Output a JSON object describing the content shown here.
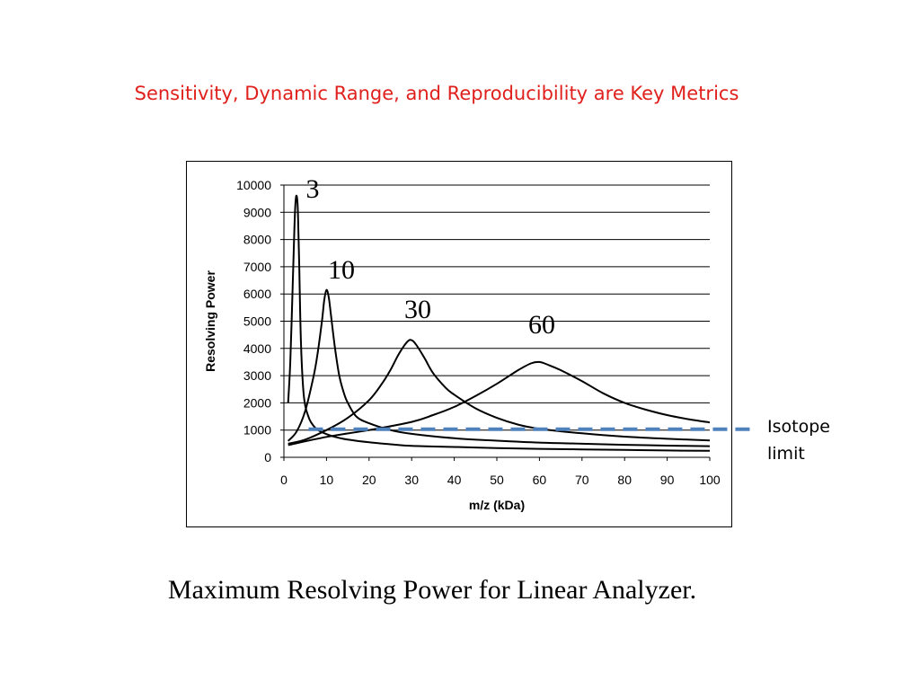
{
  "slide": {
    "title": "Sensitivity, Dynamic Range, and Reproducibility are Key Metrics",
    "caption": "Maximum Resolving Power for Linear Analyzer.",
    "isotope_label": "Isotope limit"
  },
  "chart_data": {
    "type": "line",
    "title": "",
    "xlabel": "m/z (kDa)",
    "ylabel": "Resolving Power",
    "xlim": [
      0,
      100
    ],
    "ylim": [
      0,
      10000
    ],
    "x_ticks": [
      0,
      10,
      20,
      30,
      40,
      50,
      60,
      70,
      80,
      90,
      100
    ],
    "y_ticks": [
      0,
      1000,
      2000,
      3000,
      4000,
      5000,
      6000,
      7000,
      8000,
      9000,
      10000
    ],
    "grid": "horizontal",
    "line_color": "#000000",
    "series": [
      {
        "label": "3",
        "x": [
          1,
          1.5,
          2,
          2.4,
          2.7,
          3,
          3.3,
          3.6,
          4,
          4.5,
          5,
          6,
          7,
          8,
          10,
          12,
          15,
          20,
          25,
          30,
          40,
          50,
          60,
          70,
          80,
          90,
          100
        ],
        "y": [
          2000,
          3500,
          6000,
          8100,
          9300,
          9600,
          9000,
          7000,
          4200,
          2600,
          1900,
          1400,
          1150,
          1000,
          850,
          750,
          650,
          550,
          480,
          420,
          380,
          340,
          310,
          290,
          270,
          250,
          240
        ]
      },
      {
        "label": "10",
        "x": [
          1,
          3,
          5,
          7,
          8,
          9,
          9.5,
          10,
          10.5,
          11,
          12,
          13,
          14,
          15,
          17,
          20,
          25,
          30,
          40,
          50,
          60,
          70,
          80,
          90,
          100
        ],
        "y": [
          600,
          950,
          1700,
          3000,
          3900,
          5100,
          5800,
          6150,
          5900,
          5300,
          4000,
          3000,
          2400,
          2000,
          1500,
          1250,
          1000,
          860,
          700,
          610,
          540,
          500,
          460,
          430,
          410
        ]
      },
      {
        "label": "30",
        "x": [
          1,
          5,
          10,
          15,
          20,
          23,
          25,
          27,
          29,
          30,
          31,
          33,
          35,
          38,
          40,
          45,
          50,
          55,
          60,
          70,
          80,
          90,
          100
        ],
        "y": [
          500,
          650,
          1000,
          1450,
          2100,
          2700,
          3200,
          3800,
          4250,
          4300,
          4150,
          3650,
          3100,
          2550,
          2300,
          1800,
          1450,
          1200,
          1050,
          880,
          760,
          680,
          620
        ]
      },
      {
        "label": "60",
        "x": [
          1,
          10,
          20,
          30,
          35,
          40,
          45,
          50,
          55,
          58,
          60,
          62,
          65,
          70,
          75,
          80,
          85,
          90,
          95,
          100
        ],
        "y": [
          450,
          750,
          1000,
          1300,
          1550,
          1850,
          2250,
          2700,
          3200,
          3450,
          3500,
          3400,
          3200,
          2800,
          2350,
          2000,
          1750,
          1550,
          1400,
          1280
        ]
      }
    ],
    "reference_lines": [
      {
        "label": "Isotope limit",
        "y": 1000,
        "style": "dashed",
        "color": "#4f81bd"
      }
    ]
  }
}
